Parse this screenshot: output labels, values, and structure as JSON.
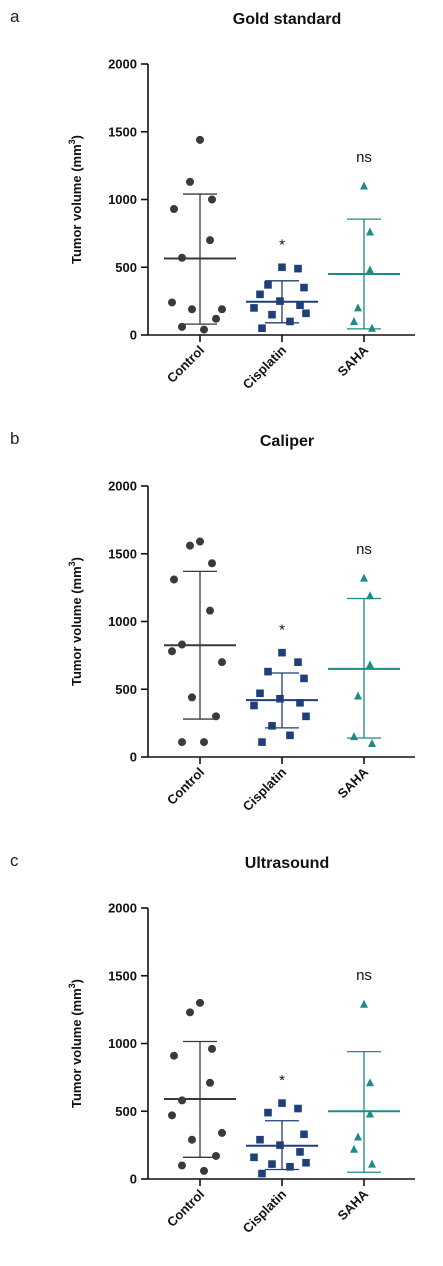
{
  "chart_data": [
    {
      "panel": "a",
      "title": "Gold standard",
      "type": "scatter",
      "ylabel": "Tumor volume (mm3)",
      "ylim": [
        0,
        2000
      ],
      "yticks": [
        0,
        500,
        1000,
        1500,
        2000
      ],
      "categories": [
        "Control",
        "Cisplatin",
        "SAHA"
      ],
      "grid": false,
      "series": [
        {
          "name": "Control",
          "color": "#3a3a3a",
          "marker": "circle",
          "values": [
            1440,
            1130,
            1000,
            930,
            700,
            570,
            240,
            190,
            190,
            120,
            60,
            40
          ],
          "mean": 565,
          "sd_upper": 1040,
          "sd_lower": 80,
          "annotation": ""
        },
        {
          "name": "Cisplatin",
          "color": "#1f3f7a",
          "marker": "square",
          "values": [
            500,
            490,
            370,
            350,
            300,
            250,
            220,
            200,
            160,
            150,
            100,
            50
          ],
          "mean": 245,
          "sd_upper": 400,
          "sd_lower": 90,
          "annotation": "*"
        },
        {
          "name": "SAHA",
          "color": "#1e8c82",
          "marker": "triangle",
          "values": [
            1100,
            760,
            480,
            200,
            100,
            50
          ],
          "mean": 450,
          "sd_upper": 855,
          "sd_lower": 45,
          "annotation": "ns"
        }
      ]
    },
    {
      "panel": "b",
      "title": "Caliper",
      "type": "scatter",
      "ylabel": "Tumor volume (mm3)",
      "ylim": [
        0,
        2000
      ],
      "yticks": [
        0,
        500,
        1000,
        1500,
        2000
      ],
      "categories": [
        "Control",
        "Cisplatin",
        "SAHA"
      ],
      "grid": false,
      "series": [
        {
          "name": "Control",
          "color": "#3a3a3a",
          "marker": "circle",
          "values": [
            1590,
            1560,
            1430,
            1310,
            1080,
            830,
            780,
            700,
            440,
            300,
            110,
            110
          ],
          "mean": 825,
          "sd_upper": 1370,
          "sd_lower": 280,
          "annotation": ""
        },
        {
          "name": "Cisplatin",
          "color": "#1f3f7a",
          "marker": "square",
          "values": [
            770,
            700,
            630,
            580,
            470,
            430,
            400,
            380,
            300,
            230,
            160,
            110
          ],
          "mean": 420,
          "sd_upper": 620,
          "sd_lower": 215,
          "annotation": "*"
        },
        {
          "name": "SAHA",
          "color": "#1e8c82",
          "marker": "triangle",
          "values": [
            1320,
            1190,
            680,
            450,
            150,
            100
          ],
          "mean": 650,
          "sd_upper": 1170,
          "sd_lower": 140,
          "annotation": "ns"
        }
      ]
    },
    {
      "panel": "c",
      "title": "Ultrasound",
      "type": "scatter",
      "ylabel": "Tumor volume (mm3)",
      "ylim": [
        0,
        2000
      ],
      "yticks": [
        0,
        500,
        1000,
        1500,
        2000
      ],
      "categories": [
        "Control",
        "Cisplatin",
        "SAHA"
      ],
      "grid": false,
      "series": [
        {
          "name": "Control",
          "color": "#3a3a3a",
          "marker": "circle",
          "values": [
            1300,
            1230,
            960,
            910,
            710,
            580,
            470,
            340,
            290,
            170,
            100,
            60
          ],
          "mean": 590,
          "sd_upper": 1015,
          "sd_lower": 160,
          "annotation": ""
        },
        {
          "name": "Cisplatin",
          "color": "#1f3f7a",
          "marker": "square",
          "values": [
            560,
            520,
            490,
            330,
            290,
            250,
            200,
            160,
            120,
            110,
            90,
            40
          ],
          "mean": 245,
          "sd_upper": 430,
          "sd_lower": 70,
          "annotation": "*"
        },
        {
          "name": "SAHA",
          "color": "#1e8c82",
          "marker": "triangle",
          "values": [
            1290,
            710,
            480,
            310,
            220,
            110
          ],
          "mean": 500,
          "sd_upper": 940,
          "sd_lower": 50,
          "annotation": "ns"
        }
      ]
    }
  ]
}
